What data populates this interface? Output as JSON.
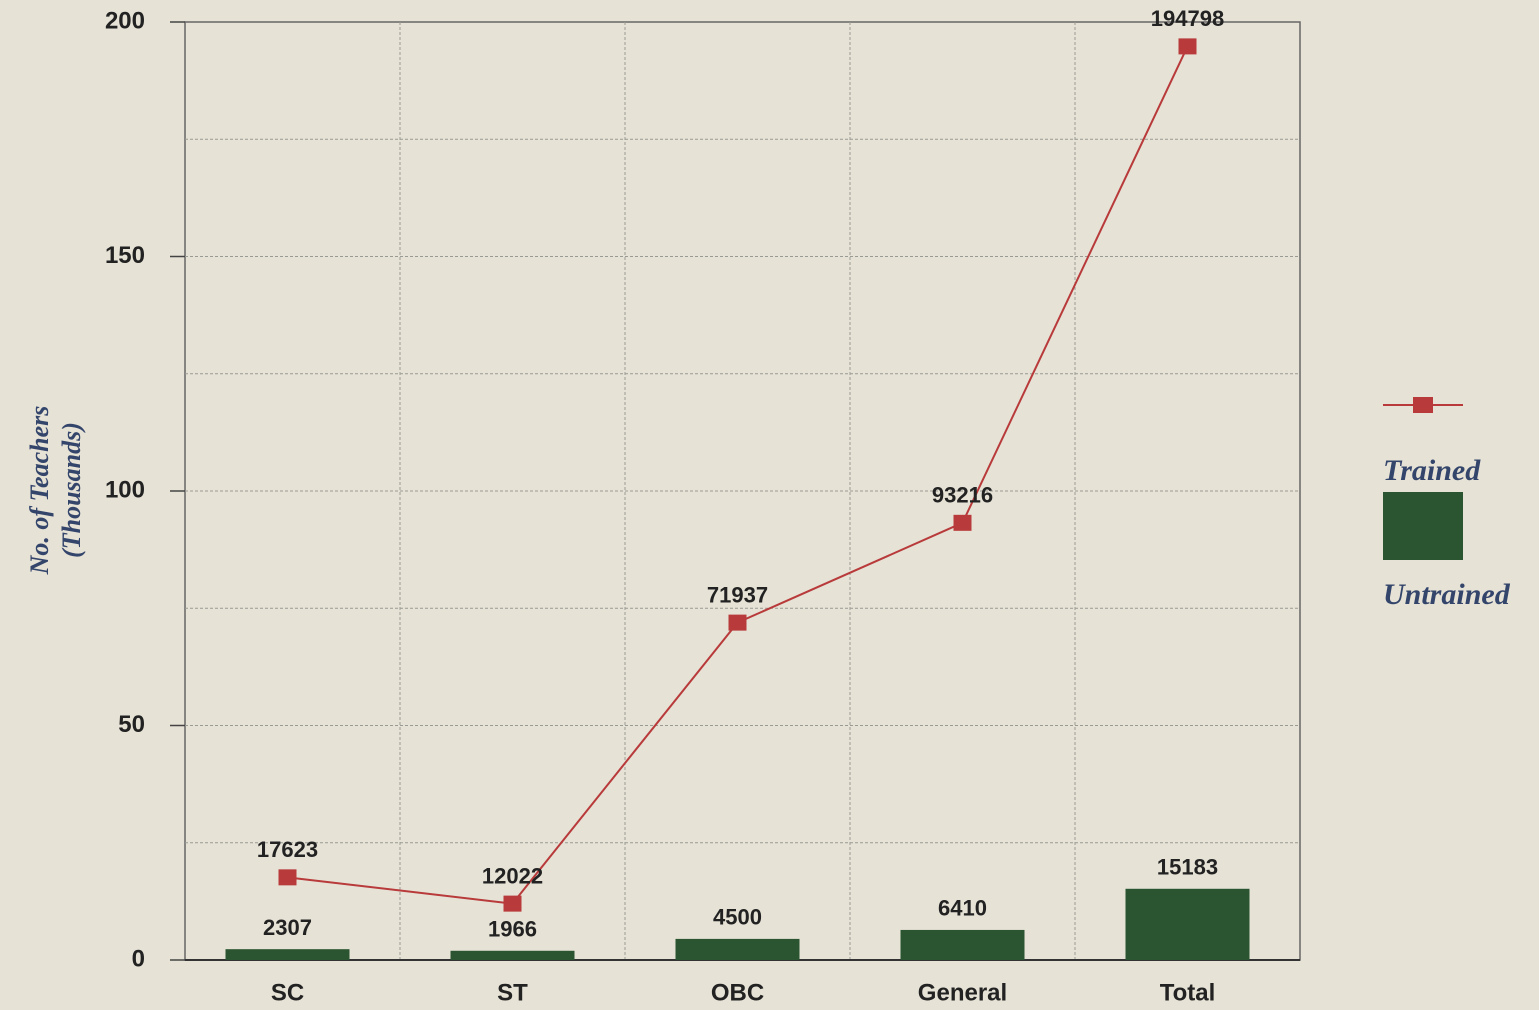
{
  "chart_data": {
    "type": "bar_line",
    "y_label": [
      "No. of Teachers",
      "(Thousands)"
    ],
    "categories": [
      "SC",
      "ST",
      "OBC",
      "General",
      "Total"
    ],
    "series": [
      {
        "name": "Trained",
        "type": "line",
        "color": "#b83a3a",
        "values": [
          17.623,
          12.022,
          71.937,
          93.216,
          194.798
        ],
        "value_labels": [
          "17623",
          "12022",
          "71937",
          "93216",
          "194798"
        ]
      },
      {
        "name": "Untrained",
        "type": "bar",
        "color": "#2b5530",
        "values": [
          2.307,
          1.966,
          4.5,
          6.41,
          15.183
        ],
        "value_labels": [
          "2307",
          "1966",
          "4500",
          "6410",
          "15183"
        ]
      }
    ],
    "ylim": [
      0,
      200
    ],
    "yticks": [
      0,
      50,
      100,
      150,
      200
    ],
    "minor_yticks": [
      25,
      75,
      125,
      175
    ],
    "grid": true
  }
}
